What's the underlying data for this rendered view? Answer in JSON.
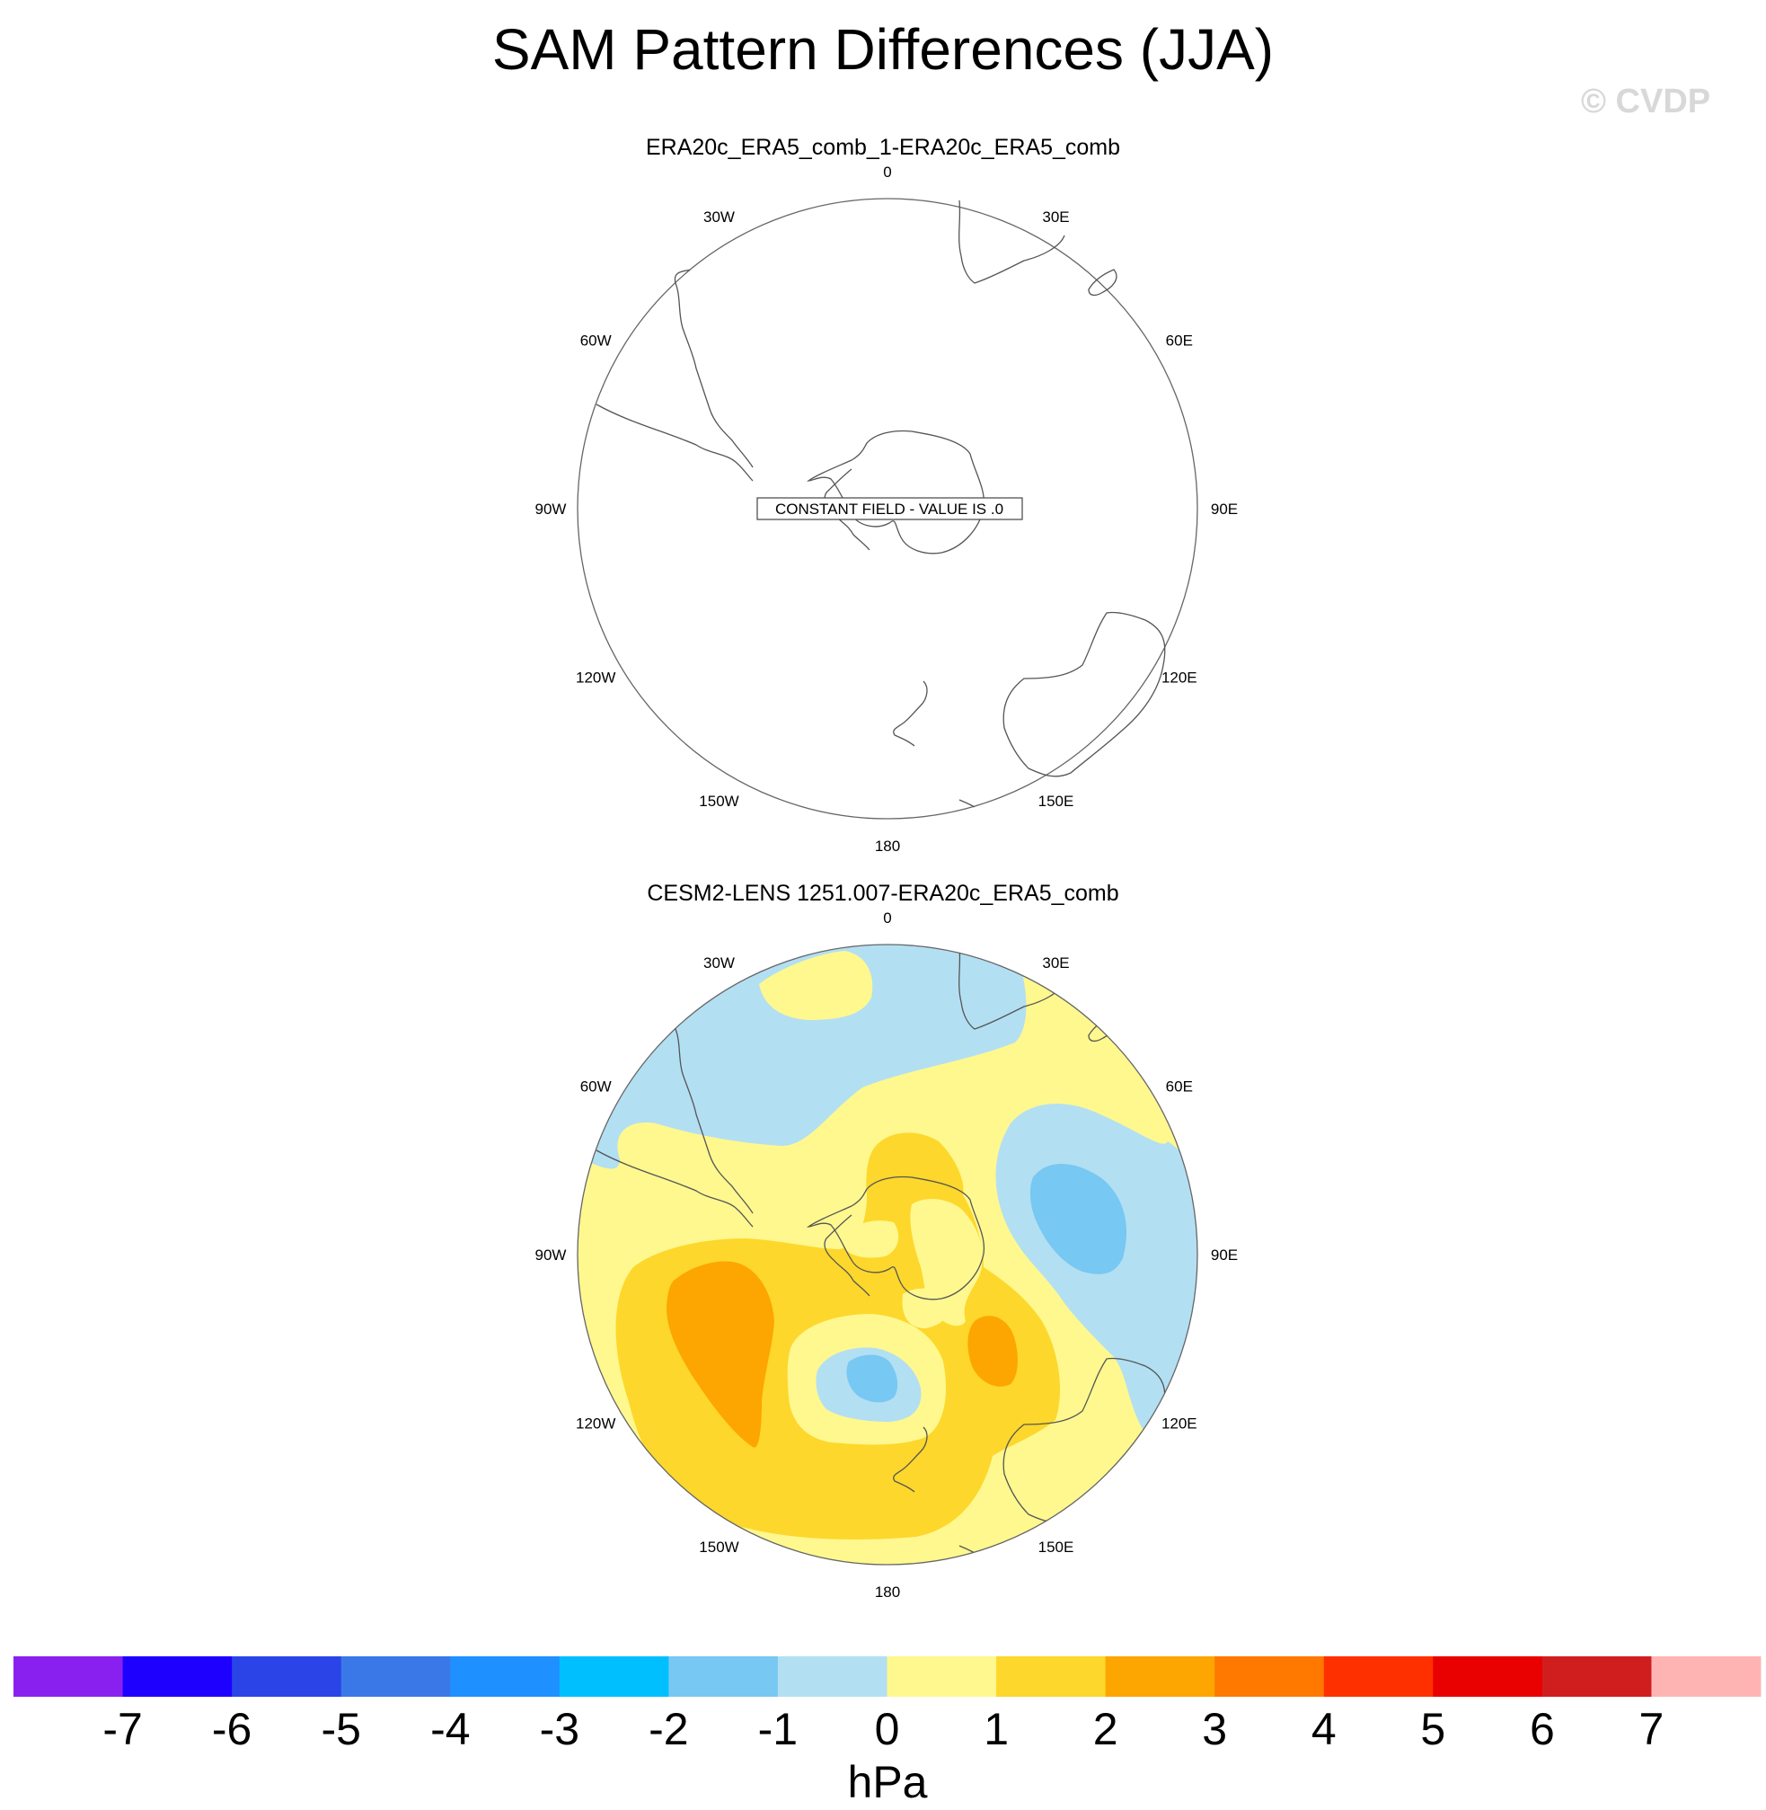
{
  "title": "SAM Pattern Differences (JJA)",
  "watermark": "© CVDP",
  "panels": [
    {
      "title": "ERA20c_ERA5_comb_1-ERA20c_ERA5_comb",
      "constant_field_label": "CONSTANT FIELD - VALUE IS .0"
    },
    {
      "title": "CESM2-LENS 1251.007-ERA20c_ERA5_comb"
    }
  ],
  "longitude_labels": [
    "0",
    "30E",
    "60E",
    "90E",
    "120E",
    "150E",
    "180",
    "150W",
    "120W",
    "90W",
    "60W",
    "30W"
  ],
  "chart_data": [
    {
      "type": "heatmap",
      "projection": "polar stereographic (Southern Hemisphere)",
      "title": "ERA20c_ERA5_comb_1-ERA20c_ERA5_comb",
      "field": "constant",
      "value": 0
    },
    {
      "type": "heatmap",
      "projection": "polar stereographic (Southern Hemisphere)",
      "title": "CESM2-LENS 1251.007-ERA20c_ERA5_comb",
      "field": "SLP difference (hPa), shaded contours",
      "features": [
        {
          "region": "Amundsen / Bellingshausen Sea sector (~130W, ~60S)",
          "range": [
            2,
            3
          ]
        },
        {
          "region": "Ross Sea sector (~170E, ~70S)",
          "range": [
            2,
            3
          ]
        },
        {
          "region": "Southern Ocean south of New Zealand (~180, ~55S)",
          "range": [
            -2,
            -1
          ]
        },
        {
          "region": "Indian Ocean sector (~75E, ~55S)",
          "range": [
            -2,
            -1
          ]
        },
        {
          "region": "Antarctica (interior)",
          "range": [
            0,
            2
          ]
        },
        {
          "region": "South Atlantic / South America (~30W)",
          "range": [
            -1,
            0
          ]
        },
        {
          "region": "Mid-latitude ring (~40S)",
          "range": [
            0,
            1
          ]
        }
      ]
    }
  ],
  "colorbar": {
    "label": "hPa",
    "ticks": [
      "-7",
      "-6",
      "-5",
      "-4",
      "-3",
      "-2",
      "-1",
      "0",
      "1",
      "2",
      "3",
      "4",
      "5",
      "6",
      "7"
    ],
    "colors": [
      "#8a20f0",
      "#1e00ff",
      "#2a44e8",
      "#3a78e8",
      "#1e90ff",
      "#00bfff",
      "#77c8f2",
      "#b3dff3",
      "#fef88f",
      "#fdd72b",
      "#fda500",
      "#ff7800",
      "#ff3000",
      "#e90000",
      "#d01e1e",
      "#ffb4b4"
    ]
  }
}
